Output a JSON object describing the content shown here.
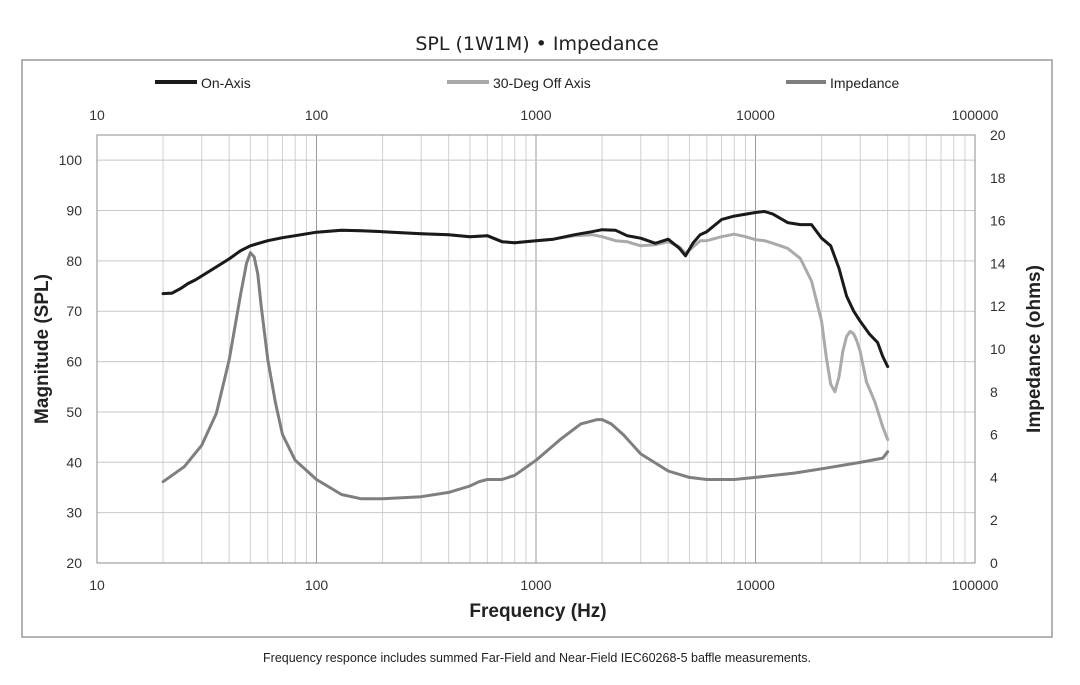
{
  "chart_data": {
    "type": "line",
    "title": "SPL (1W1M) • Impedance",
    "xlabel": "Frequency (Hz)",
    "ylabel": "Magnitude (SPL)",
    "y2label": "Impedance (ohms)",
    "xscale": "log",
    "xlim": [
      10,
      100000
    ],
    "ylim": [
      20,
      105
    ],
    "y2lim": [
      0,
      20
    ],
    "x_ticks": [
      "10",
      "100",
      "1000",
      "10000",
      "100000"
    ],
    "y_ticks": [
      "20",
      "30",
      "40",
      "50",
      "60",
      "70",
      "80",
      "90",
      "100"
    ],
    "y2_ticks": [
      "0",
      "2",
      "4",
      "6",
      "8",
      "10",
      "12",
      "14",
      "16",
      "18",
      "20"
    ],
    "grid": true,
    "legend_position": "top",
    "footnote": "Frequency responce includes summed Far-Field and Near-Field IEC60268-5 baffle measurements.",
    "series": [
      {
        "name": "On-Axis",
        "color": "#1a1a1a",
        "axis": "left",
        "x": [
          20,
          22,
          24,
          26,
          28,
          30,
          35,
          40,
          45,
          50,
          60,
          70,
          80,
          100,
          130,
          160,
          200,
          300,
          400,
          500,
          600,
          700,
          800,
          1000,
          1200,
          1500,
          1800,
          2000,
          2300,
          2600,
          3000,
          3500,
          4000,
          4500,
          4800,
          5200,
          5600,
          6000,
          7000,
          8000,
          10000,
          11000,
          12000,
          14000,
          16000,
          18000,
          20000,
          22000,
          24000,
          26000,
          28000,
          30000,
          33000,
          36000,
          38000,
          40000
        ],
        "values": [
          73.5,
          73.6,
          74.5,
          75.5,
          76.2,
          77.0,
          78.8,
          80.4,
          82.0,
          83.0,
          84.0,
          84.6,
          85.0,
          85.7,
          86.1,
          86.0,
          85.8,
          85.4,
          85.2,
          84.8,
          85.0,
          83.8,
          83.6,
          84.0,
          84.3,
          85.2,
          85.8,
          86.2,
          86.1,
          85.0,
          84.5,
          83.5,
          84.3,
          82.5,
          81.0,
          83.6,
          85.2,
          85.8,
          88.2,
          88.9,
          89.6,
          89.8,
          89.3,
          87.6,
          87.2,
          87.2,
          84.5,
          83.0,
          78.5,
          73.0,
          70.0,
          68.0,
          65.5,
          63.8,
          61.0,
          59.0
        ]
      },
      {
        "name": "30-Deg Off Axis",
        "color": "#aaaaaa",
        "axis": "left",
        "x": [
          20,
          22,
          24,
          26,
          28,
          30,
          35,
          40,
          45,
          50,
          60,
          70,
          80,
          100,
          130,
          160,
          200,
          300,
          400,
          500,
          600,
          700,
          800,
          1000,
          1200,
          1500,
          1800,
          2000,
          2300,
          2600,
          3000,
          3500,
          4000,
          4500,
          4800,
          5200,
          5600,
          6000,
          7000,
          8000,
          9000,
          10000,
          11000,
          12000,
          14000,
          16000,
          18000,
          20000,
          21000,
          22000,
          23000,
          24000,
          25000,
          26000,
          27000,
          28000,
          29000,
          30000,
          32000,
          35000,
          38000,
          40000
        ],
        "values": [
          73.5,
          73.6,
          74.5,
          75.5,
          76.2,
          77.0,
          78.8,
          80.4,
          82.0,
          83.0,
          84.0,
          84.6,
          85.0,
          85.7,
          86.1,
          86.0,
          85.8,
          85.4,
          85.2,
          84.8,
          85.0,
          83.8,
          83.6,
          84.0,
          84.3,
          85.0,
          85.2,
          84.8,
          84.0,
          83.8,
          83.0,
          83.2,
          83.8,
          82.8,
          81.5,
          82.8,
          84.0,
          84.0,
          84.8,
          85.3,
          84.8,
          84.2,
          84.0,
          83.5,
          82.5,
          80.5,
          76.0,
          68.0,
          61.0,
          55.5,
          54.0,
          57.0,
          62.0,
          65.0,
          66.0,
          65.5,
          64.0,
          62.0,
          56.0,
          52.0,
          47.0,
          44.5
        ]
      },
      {
        "name": "Impedance",
        "color": "#7f7f7f",
        "axis": "right",
        "x": [
          20,
          25,
          30,
          35,
          40,
          45,
          48,
          50,
          52,
          54,
          56,
          60,
          65,
          70,
          80,
          100,
          130,
          160,
          200,
          300,
          400,
          500,
          550,
          600,
          700,
          800,
          1000,
          1300,
          1600,
          1900,
          2000,
          2200,
          2500,
          3000,
          4000,
          5000,
          6000,
          8000,
          10000,
          15000,
          20000,
          30000,
          38000,
          40000
        ],
        "values": [
          3.8,
          4.5,
          5.5,
          7.0,
          9.5,
          12.5,
          14.0,
          14.5,
          14.3,
          13.5,
          12.0,
          9.5,
          7.5,
          6.0,
          4.8,
          3.9,
          3.2,
          3.0,
          3.0,
          3.1,
          3.3,
          3.6,
          3.8,
          3.9,
          3.9,
          4.1,
          4.8,
          5.8,
          6.5,
          6.7,
          6.7,
          6.5,
          6.0,
          5.1,
          4.3,
          4.0,
          3.9,
          3.9,
          4.0,
          4.2,
          4.4,
          4.7,
          4.9,
          5.2
        ]
      }
    ]
  }
}
